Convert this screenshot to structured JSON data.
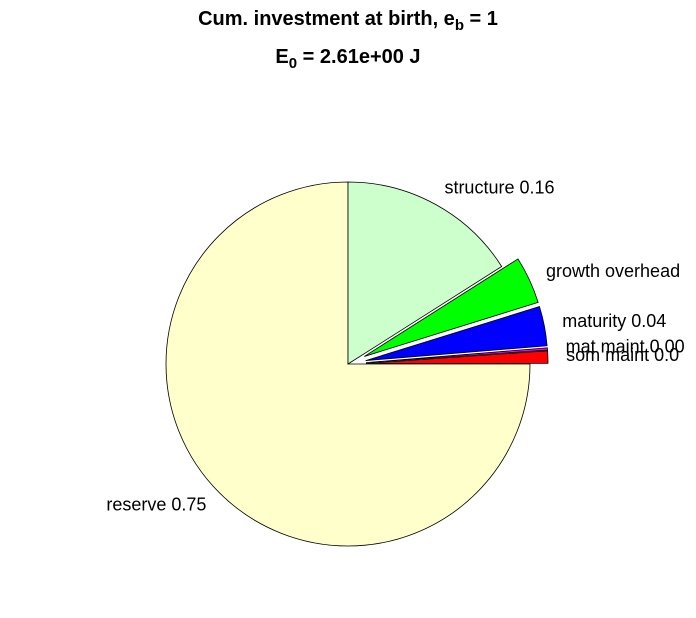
{
  "chart_data": {
    "type": "pie",
    "title": {
      "text": "Cum. investment at birth, e",
      "sub": "b",
      "rest": " = 1"
    },
    "subtitle": {
      "text": "E",
      "sub": "0",
      "rest": " = 2.61e+00 J"
    },
    "categories": [
      "reserve 0.75",
      "som maint 0.0",
      "mat maint 0.00",
      "maturity 0.04",
      "growth overhead",
      "structure 0.16"
    ],
    "values": [
      0.75,
      0.011,
      0.002,
      0.035,
      0.042,
      0.16
    ],
    "colors": [
      "#ffffcc",
      "#ff0000",
      "#ff00ff",
      "#0000ff",
      "#00ff00",
      "#ccffcc"
    ],
    "explode": [
      false,
      true,
      true,
      true,
      true,
      false
    ]
  }
}
